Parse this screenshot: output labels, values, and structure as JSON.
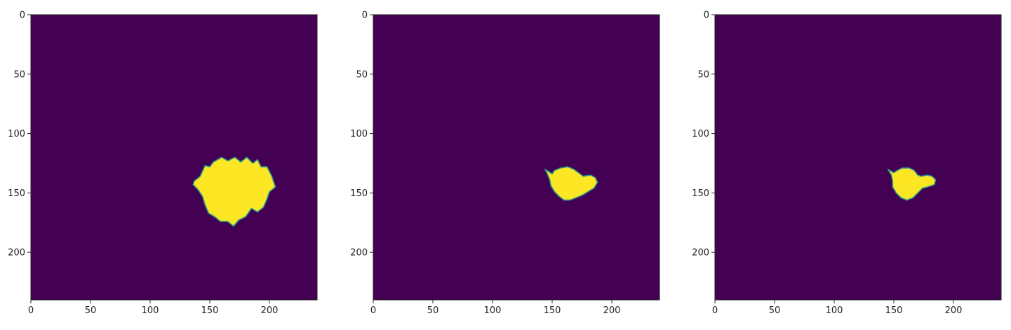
{
  "colors": {
    "background": "#440154",
    "foreground": "#fde725",
    "edge": "#2a9a8a",
    "axis": "#222222"
  },
  "chart_data": [
    {
      "type": "heatmap",
      "title": "",
      "xlabel": "",
      "ylabel": "",
      "xlim": [
        0,
        240
      ],
      "ylim": [
        240,
        0
      ],
      "xticks": [
        "0",
        "50",
        "100",
        "150",
        "200"
      ],
      "yticks": [
        "0",
        "50",
        "100",
        "150",
        "200"
      ],
      "grid": false,
      "blob": [
        [
          137,
          140
        ],
        [
          142,
          136
        ],
        [
          146,
          127
        ],
        [
          150,
          128
        ],
        [
          153,
          124
        ],
        [
          160,
          120
        ],
        [
          165,
          123
        ],
        [
          171,
          120
        ],
        [
          176,
          124
        ],
        [
          181,
          120
        ],
        [
          186,
          125
        ],
        [
          190,
          122
        ],
        [
          193,
          128
        ],
        [
          198,
          128
        ],
        [
          202,
          136
        ],
        [
          205,
          145
        ],
        [
          200,
          149
        ],
        [
          198,
          155
        ],
        [
          195,
          162
        ],
        [
          190,
          166
        ],
        [
          185,
          163
        ],
        [
          180,
          170
        ],
        [
          174,
          173
        ],
        [
          170,
          178
        ],
        [
          165,
          174
        ],
        [
          159,
          174
        ],
        [
          154,
          170
        ],
        [
          149,
          167
        ],
        [
          146,
          160
        ],
        [
          144,
          153
        ],
        [
          140,
          147
        ],
        [
          136,
          143
        ]
      ]
    },
    {
      "type": "heatmap",
      "title": "",
      "xlabel": "",
      "ylabel": "",
      "xlim": [
        0,
        240
      ],
      "ylim": [
        240,
        0
      ],
      "xticks": [
        "0",
        "50",
        "100",
        "150",
        "200"
      ],
      "yticks": [
        "0",
        "50",
        "100",
        "150",
        "200"
      ],
      "grid": false,
      "blob": [
        [
          144,
          130
        ],
        [
          150,
          134
        ],
        [
          152,
          131
        ],
        [
          157,
          129
        ],
        [
          163,
          128
        ],
        [
          168,
          130
        ],
        [
          172,
          133
        ],
        [
          176,
          136
        ],
        [
          182,
          135
        ],
        [
          186,
          137
        ],
        [
          188,
          141
        ],
        [
          185,
          146
        ],
        [
          180,
          149
        ],
        [
          175,
          152
        ],
        [
          170,
          154
        ],
        [
          165,
          156
        ],
        [
          160,
          156
        ],
        [
          156,
          153
        ],
        [
          152,
          149
        ],
        [
          149,
          144
        ],
        [
          148,
          139
        ],
        [
          146,
          134
        ]
      ]
    },
    {
      "type": "heatmap",
      "title": "",
      "xlabel": "",
      "ylabel": "",
      "xlim": [
        0,
        240
      ],
      "ylim": [
        240,
        0
      ],
      "xticks": [
        "0",
        "50",
        "100",
        "150",
        "200"
      ],
      "yticks": [
        "0",
        "50",
        "100",
        "150",
        "200"
      ],
      "grid": false,
      "blob": [
        [
          145,
          130
        ],
        [
          150,
          133
        ],
        [
          153,
          131
        ],
        [
          157,
          129
        ],
        [
          163,
          129
        ],
        [
          167,
          131
        ],
        [
          170,
          135
        ],
        [
          173,
          136
        ],
        [
          178,
          135
        ],
        [
          182,
          136
        ],
        [
          185,
          139
        ],
        [
          184,
          143
        ],
        [
          178,
          145
        ],
        [
          174,
          146
        ],
        [
          170,
          150
        ],
        [
          166,
          154
        ],
        [
          161,
          156
        ],
        [
          156,
          154
        ],
        [
          152,
          150
        ],
        [
          149,
          145
        ],
        [
          149,
          140
        ],
        [
          148,
          135
        ]
      ]
    }
  ]
}
